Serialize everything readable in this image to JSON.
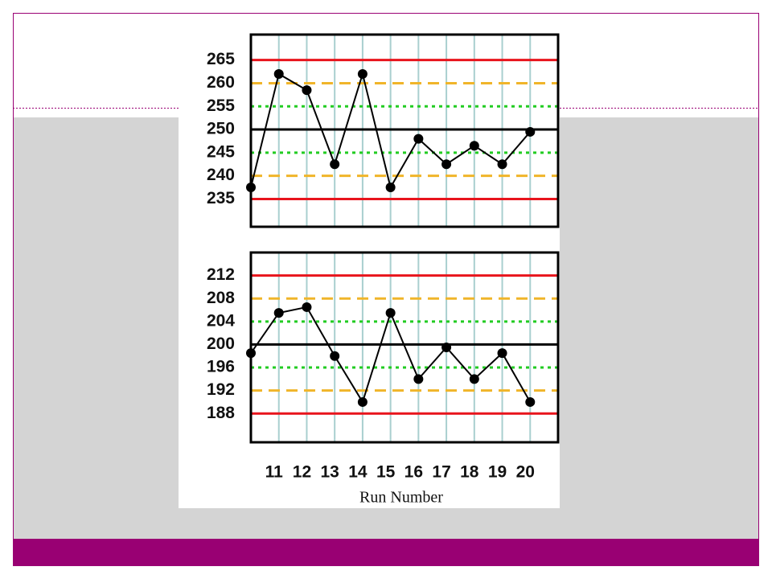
{
  "chart_data": [
    {
      "type": "line",
      "x": [
        10,
        11,
        12,
        13,
        14,
        15,
        16,
        17,
        18,
        19,
        20
      ],
      "series": [
        {
          "color": "#000000",
          "values": [
            237.5,
            262,
            258.5,
            242.5,
            262,
            237.5,
            248,
            242.5,
            246.5,
            242.5,
            249.5
          ]
        }
      ],
      "xlim": [
        10,
        21
      ],
      "ylim": [
        229,
        270.5
      ],
      "yticks": [
        265,
        260,
        255,
        250,
        245,
        240,
        235
      ],
      "ref_lines": [
        {
          "value": 265,
          "color": "#e8141c",
          "style": "solid"
        },
        {
          "value": 260,
          "color": "#f0b52a",
          "style": "dashed"
        },
        {
          "value": 255,
          "color": "#22cc22",
          "style": "dotted"
        },
        {
          "value": 250,
          "color": "#000000",
          "style": "solid"
        },
        {
          "value": 245,
          "color": "#22cc22",
          "style": "dotted"
        },
        {
          "value": 240,
          "color": "#f0b52a",
          "style": "dashed"
        },
        {
          "value": 235,
          "color": "#e8141c",
          "style": "solid"
        }
      ]
    },
    {
      "type": "line",
      "x": [
        10,
        11,
        12,
        13,
        14,
        15,
        16,
        17,
        18,
        19,
        20
      ],
      "series": [
        {
          "color": "#000000",
          "values": [
            198.5,
            205.5,
            206.5,
            198,
            190,
            205.5,
            194,
            199.5,
            194,
            198.5,
            190
          ]
        }
      ],
      "xlim": [
        10,
        21
      ],
      "ylim": [
        183,
        216
      ],
      "xticks": [
        11,
        12,
        13,
        14,
        15,
        16,
        17,
        18,
        19,
        20
      ],
      "yticks": [
        212,
        208,
        204,
        200,
        196,
        192,
        188
      ],
      "x_label": "Run Number",
      "ref_lines": [
        {
          "value": 212,
          "color": "#e8141c",
          "style": "solid"
        },
        {
          "value": 208,
          "color": "#f0b52a",
          "style": "dashed"
        },
        {
          "value": 204,
          "color": "#22cc22",
          "style": "dotted"
        },
        {
          "value": 200,
          "color": "#000000",
          "style": "solid"
        },
        {
          "value": 196,
          "color": "#22cc22",
          "style": "dotted"
        },
        {
          "value": 192,
          "color": "#f0b52a",
          "style": "dashed"
        },
        {
          "value": 188,
          "color": "#e8141c",
          "style": "solid"
        }
      ]
    }
  ]
}
